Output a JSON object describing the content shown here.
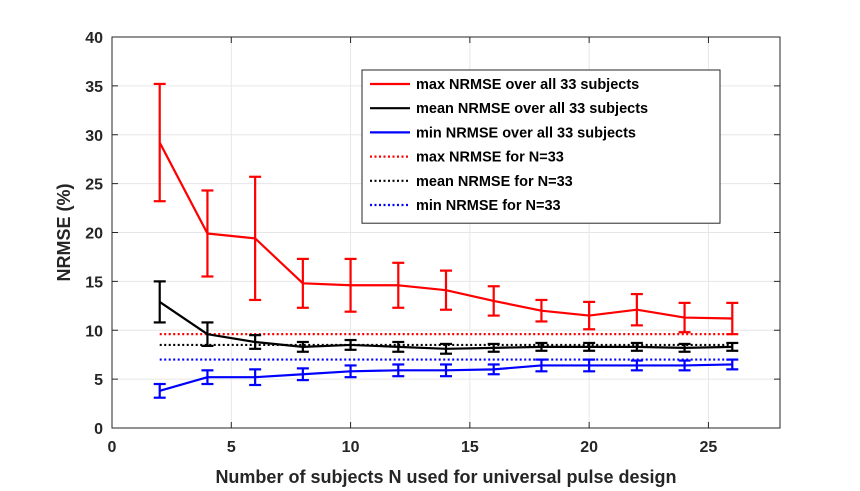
{
  "chart_data": {
    "type": "line",
    "xlabel": "Number of subjects N used for universal pulse design",
    "ylabel": "NRMSE (%)",
    "xlim": [
      0,
      28
    ],
    "ylim": [
      0,
      40
    ],
    "xticks": [
      0,
      5,
      10,
      15,
      20,
      25
    ],
    "yticks": [
      0,
      5,
      10,
      15,
      20,
      25,
      30,
      35,
      40
    ],
    "grid": true,
    "legend_position": "top-right",
    "x": [
      2,
      4,
      6,
      8,
      10,
      12,
      14,
      16,
      18,
      20,
      22,
      24,
      26
    ],
    "series": [
      {
        "name": "max NRMSE over all 33 subjects",
        "color": "#ff0000",
        "style": "solid",
        "values": [
          29.2,
          19.9,
          19.4,
          14.8,
          14.6,
          14.6,
          14.1,
          13.0,
          12.0,
          11.5,
          12.1,
          11.3,
          11.2
        ],
        "errors": [
          6.0,
          4.4,
          6.3,
          2.5,
          2.7,
          2.3,
          2.0,
          1.5,
          1.1,
          1.4,
          1.6,
          1.5,
          1.6
        ]
      },
      {
        "name": "mean NRMSE over all 33 subjects",
        "color": "#000000",
        "style": "solid",
        "values": [
          12.9,
          9.6,
          8.8,
          8.3,
          8.5,
          8.3,
          8.1,
          8.2,
          8.3,
          8.3,
          8.3,
          8.2,
          8.3
        ],
        "errors": [
          2.1,
          1.2,
          0.7,
          0.5,
          0.5,
          0.5,
          0.5,
          0.4,
          0.4,
          0.4,
          0.4,
          0.4,
          0.4
        ]
      },
      {
        "name": "min NRMSE over all 33 subjects",
        "color": "#0000ff",
        "style": "solid",
        "values": [
          3.8,
          5.2,
          5.2,
          5.5,
          5.8,
          5.9,
          5.9,
          6.0,
          6.4,
          6.4,
          6.4,
          6.4,
          6.5
        ],
        "errors": [
          0.7,
          0.7,
          0.8,
          0.6,
          0.6,
          0.6,
          0.6,
          0.5,
          0.6,
          0.6,
          0.5,
          0.5,
          0.5
        ]
      },
      {
        "name": "max NRMSE for N=33",
        "color": "#ff0000",
        "style": "dotted",
        "constant": 9.6
      },
      {
        "name": "mean NRMSE for N=33",
        "color": "#000000",
        "style": "dotted",
        "constant": 8.5
      },
      {
        "name": "min NRMSE for N=33",
        "color": "#0000ff",
        "style": "dotted",
        "constant": 7.0
      }
    ]
  }
}
